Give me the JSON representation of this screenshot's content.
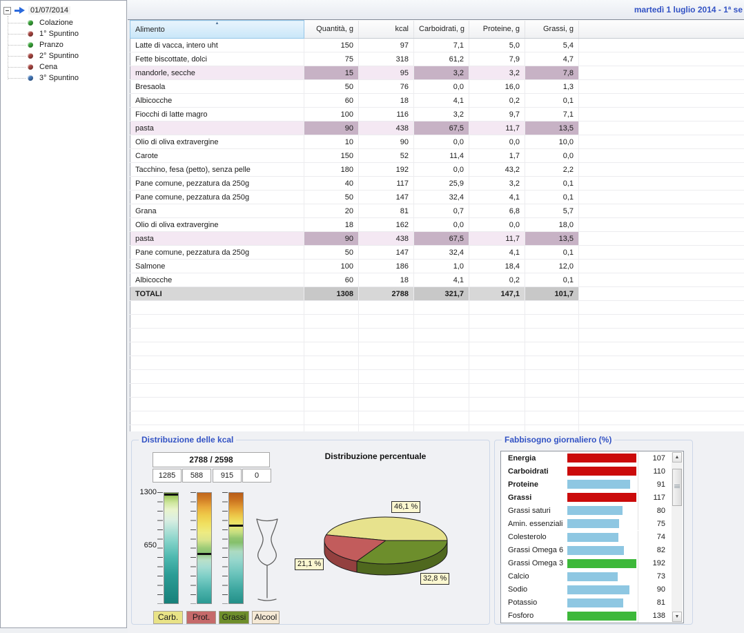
{
  "header": {
    "date_label": "martedì 1 luglio 2014 - 1ª se"
  },
  "tree": {
    "root": {
      "label": "01/07/2014"
    },
    "items": [
      {
        "label": "Colazione",
        "bullet_color": "#3aa63a"
      },
      {
        "label": "1° Spuntino",
        "bullet_color": "#a84540"
      },
      {
        "label": "Pranzo",
        "bullet_color": "#3aa63a"
      },
      {
        "label": "2° Spuntino",
        "bullet_color": "#a84540"
      },
      {
        "label": "Cena",
        "bullet_color": "#a84540"
      },
      {
        "label": "3° Spuntino",
        "bullet_color": "#4377b8"
      }
    ]
  },
  "table": {
    "columns": [
      "Alimento",
      "Quantità, g",
      "kcal",
      "Carboidrati, g",
      "Proteine, g",
      "Grassi, g"
    ],
    "rows": [
      {
        "name": "Latte di vacca, intero uht",
        "values": [
          "150",
          "97",
          "7,1",
          "5,0",
          "5,4"
        ],
        "highlight": false
      },
      {
        "name": "Fette biscottate, dolci",
        "values": [
          "75",
          "318",
          "61,2",
          "7,9",
          "4,7"
        ],
        "highlight": false
      },
      {
        "name": "mandorle, secche",
        "values": [
          "15",
          "95",
          "3,2",
          "3,2",
          "7,8"
        ],
        "highlight": true
      },
      {
        "name": "Bresaola",
        "values": [
          "50",
          "76",
          "0,0",
          "16,0",
          "1,3"
        ],
        "highlight": false
      },
      {
        "name": "Albicocche",
        "values": [
          "60",
          "18",
          "4,1",
          "0,2",
          "0,1"
        ],
        "highlight": false
      },
      {
        "name": "Fiocchi di latte magro",
        "values": [
          "100",
          "116",
          "3,2",
          "9,7",
          "7,1"
        ],
        "highlight": false
      },
      {
        "name": "pasta",
        "values": [
          "90",
          "438",
          "67,5",
          "11,7",
          "13,5"
        ],
        "highlight": true
      },
      {
        "name": "Olio di oliva extravergine",
        "values": [
          "10",
          "90",
          "0,0",
          "0,0",
          "10,0"
        ],
        "highlight": false
      },
      {
        "name": "Carote",
        "values": [
          "150",
          "52",
          "11,4",
          "1,7",
          "0,0"
        ],
        "highlight": false
      },
      {
        "name": "Tacchino, fesa (petto), senza pelle",
        "values": [
          "180",
          "192",
          "0,0",
          "43,2",
          "2,2"
        ],
        "highlight": false
      },
      {
        "name": "Pane comune, pezzatura da 250g",
        "values": [
          "40",
          "117",
          "25,9",
          "3,2",
          "0,1"
        ],
        "highlight": false
      },
      {
        "name": "Pane comune, pezzatura da 250g",
        "values": [
          "50",
          "147",
          "32,4",
          "4,1",
          "0,1"
        ],
        "highlight": false
      },
      {
        "name": "Grana",
        "values": [
          "20",
          "81",
          "0,7",
          "6,8",
          "5,7"
        ],
        "highlight": false
      },
      {
        "name": "Olio di oliva extravergine",
        "values": [
          "18",
          "162",
          "0,0",
          "0,0",
          "18,0"
        ],
        "highlight": false
      },
      {
        "name": "pasta",
        "values": [
          "90",
          "438",
          "67,5",
          "11,7",
          "13,5"
        ],
        "highlight": true
      },
      {
        "name": "Pane comune, pezzatura da 250g",
        "values": [
          "50",
          "147",
          "32,4",
          "4,1",
          "0,1"
        ],
        "highlight": false
      },
      {
        "name": "Salmone",
        "values": [
          "100",
          "186",
          "1,0",
          "18,4",
          "12,0"
        ],
        "highlight": false
      },
      {
        "name": "Albicocche",
        "values": [
          "60",
          "18",
          "4,1",
          "0,2",
          "0,1"
        ],
        "highlight": false
      }
    ],
    "totals": {
      "label": "TOTALI",
      "values": [
        "1308",
        "2788",
        "321,7",
        "147,1",
        "101,7"
      ]
    }
  },
  "kcal_panel": {
    "title": "Distribuzione delle kcal",
    "total_display": "2788 / 2598",
    "values": [
      "1285",
      "588",
      "915",
      "0"
    ],
    "scale_top": "1300",
    "scale_mid": "650",
    "scale_max_value": 1300,
    "gauges": [
      {
        "name": "Carb.",
        "value": 1285
      },
      {
        "name": "Prot.",
        "value": 588
      },
      {
        "name": "Grassi",
        "value": 915
      },
      {
        "name": "Alcool",
        "value": 0
      }
    ],
    "legend": [
      {
        "label": "Carb.",
        "bg": "#e9e387"
      },
      {
        "label": "Prot.",
        "bg": "#c66a6a"
      },
      {
        "label": "Grassi",
        "bg": "#6e8e2b"
      },
      {
        "label": "Alcool",
        "bg": "#f6ead6"
      }
    ]
  },
  "pie": {
    "title": "Distribuzione percentuale",
    "slices": [
      {
        "label": "46,1 %",
        "value": 46.1,
        "color": "#e7e28d",
        "side_color": "#b5af5e"
      },
      {
        "label": "21,1 %",
        "value": 21.1,
        "color": "#c25c5c",
        "side_color": "#93403f"
      },
      {
        "label": "32,8 %",
        "value": 32.8,
        "color": "#6d8e2c",
        "side_color": "#4f681e"
      }
    ]
  },
  "needs_panel": {
    "title": "Fabbisogno giornaliero (%)",
    "rows": [
      {
        "label": "Energia",
        "value": 107,
        "bold": true,
        "color": "#cb0b0b"
      },
      {
        "label": "Carboidrati",
        "value": 110,
        "bold": true,
        "color": "#cb0b0b"
      },
      {
        "label": "Proteine",
        "value": 91,
        "bold": true,
        "color": "#8ec7e2"
      },
      {
        "label": "Grassi",
        "value": 117,
        "bold": true,
        "color": "#cb0b0b"
      },
      {
        "label": "Grassi saturi",
        "value": 80,
        "bold": false,
        "color": "#8ec7e2"
      },
      {
        "label": "Amin. essenziali",
        "value": 75,
        "bold": false,
        "color": "#8ec7e2"
      },
      {
        "label": "Colesterolo",
        "value": 74,
        "bold": false,
        "color": "#8ec7e2"
      },
      {
        "label": "Grassi Omega 6",
        "value": 82,
        "bold": false,
        "color": "#8ec7e2"
      },
      {
        "label": "Grassi Omega 3",
        "value": 192,
        "bold": false,
        "color": "#3db83a"
      },
      {
        "label": "Calcio",
        "value": 73,
        "bold": false,
        "color": "#8ec7e2"
      },
      {
        "label": "Sodio",
        "value": 90,
        "bold": false,
        "color": "#8ec7e2"
      },
      {
        "label": "Potassio",
        "value": 81,
        "bold": false,
        "color": "#8ec7e2"
      },
      {
        "label": "Fosforo",
        "value": 138,
        "bold": false,
        "color": "#3db83a"
      }
    ]
  },
  "colors": {
    "accent_blue": "#3252c4",
    "row_highlight": "#f4e8f3",
    "row_highlight_dark": "#c7b2c5",
    "totals_bg": "#d7d7d7",
    "bar_red": "#cb0b0b",
    "bar_blue": "#8ec7e2",
    "bar_green": "#3db83a"
  },
  "chart_data": [
    {
      "type": "pie",
      "title": "Distribuzione percentuale",
      "categories": [
        "Carboidrati",
        "Proteine",
        "Grassi"
      ],
      "values": [
        46.1,
        21.1,
        32.8
      ],
      "unit": "%",
      "colors": [
        "#e7e28d",
        "#c25c5c",
        "#6d8e2c"
      ],
      "style": "3d-pie with boxed percent labels"
    },
    {
      "type": "bar",
      "title": "Fabbisogno giornaliero (%)",
      "orientation": "horizontal",
      "categories": [
        "Energia",
        "Carboidrati",
        "Proteine",
        "Grassi",
        "Grassi saturi",
        "Amin. essenziali",
        "Colesterolo",
        "Grassi Omega 6",
        "Grassi Omega 3",
        "Calcio",
        "Sodio",
        "Potassio",
        "Fosforo"
      ],
      "values": [
        107,
        110,
        91,
        117,
        80,
        75,
        74,
        82,
        192,
        73,
        90,
        81,
        138
      ],
      "bar_cap": 100,
      "legend_position": "none",
      "grid": false
    },
    {
      "type": "bar",
      "title": "Distribuzione delle kcal",
      "subtitle": "2788 / 2598",
      "categories": [
        "Carb.",
        "Prot.",
        "Grassi",
        "Alcool"
      ],
      "values": [
        1285,
        588,
        915,
        0
      ],
      "ylim": [
        0,
        1300
      ],
      "style": "vertical gradient gauges with black value markers"
    }
  ]
}
